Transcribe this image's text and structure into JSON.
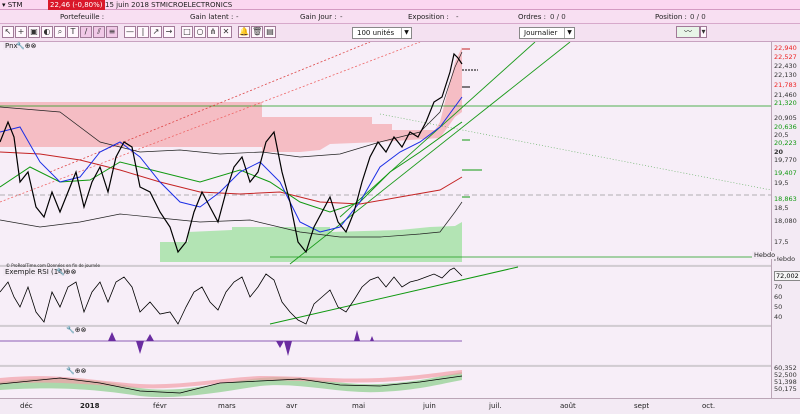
{
  "titlebar": {
    "symbol": "▾ STM",
    "price": "22,46 (-0,80%)",
    "description": "15 juin 2018 STMICROELECTRONICS"
  },
  "infobar": [
    {
      "label": "Portefeuille :",
      "value": ""
    },
    {
      "label": "Gain latent :",
      "value": "-"
    },
    {
      "label": "Gain Jour :",
      "value": "-"
    },
    {
      "label": "Exposition :",
      "value": "-"
    },
    {
      "label": "Ordres :",
      "value": "0 / 0"
    },
    {
      "label": "Position :",
      "value": "0 / 0"
    }
  ],
  "toolbar": {
    "units": "100 unités",
    "period": "Journalier",
    "pnx": "Pnx"
  },
  "panels": {
    "main_note": "© ProRealTime.com Données en fin de journée",
    "rsi_label": "Exemple RSI (14)",
    "hebdo_label": "Hebdo"
  },
  "price_axis": [
    {
      "v": "22,940",
      "c": "red"
    },
    {
      "v": "22,527",
      "c": "red"
    },
    {
      "v": "22,430",
      "c": ""
    },
    {
      "v": "22,130",
      "c": ""
    },
    {
      "v": "21,783",
      "c": "red"
    },
    {
      "v": "21,460",
      "c": ""
    },
    {
      "v": "21,320",
      "c": "green"
    },
    {
      "v": "20,905",
      "c": ""
    },
    {
      "v": "20,636",
      "c": "green"
    },
    {
      "v": "20,5",
      "c": ""
    },
    {
      "v": "20,223",
      "c": "green"
    },
    {
      "v": "20",
      "c": ""
    },
    {
      "v": "19,770",
      "c": ""
    },
    {
      "v": "19,407",
      "c": "green"
    },
    {
      "v": "19,5",
      "c": ""
    },
    {
      "v": "18,863",
      "c": "green"
    },
    {
      "v": "18,5",
      "c": ""
    },
    {
      "v": "18,080",
      "c": ""
    },
    {
      "v": "17,5",
      "c": ""
    },
    {
      "v": "Hebdo",
      "c": ""
    }
  ],
  "rsi_axis": [
    {
      "v": "72,002",
      "c": ""
    },
    {
      "v": "70",
      "c": ""
    },
    {
      "v": "60",
      "c": ""
    },
    {
      "v": "50",
      "c": ""
    },
    {
      "v": "40",
      "c": ""
    }
  ],
  "bottom_axis": [
    {
      "v": "60,352",
      "c": ""
    },
    {
      "v": "52,500",
      "c": ""
    },
    {
      "v": "51,398",
      "c": ""
    },
    {
      "v": "50,175",
      "c": ""
    }
  ],
  "months": [
    "déc",
    "2018",
    "févr",
    "mars",
    "avr",
    "mai",
    "juin",
    "juil.",
    "août",
    "sept",
    "oct."
  ],
  "colors": {
    "close": "#000000",
    "ma_short": "#1a2ee6",
    "ma_mid": "#119911",
    "ma_long": "#c42323",
    "cloud_red": "#f7b5bc",
    "cloud_green": "#a8e6a8"
  }
}
